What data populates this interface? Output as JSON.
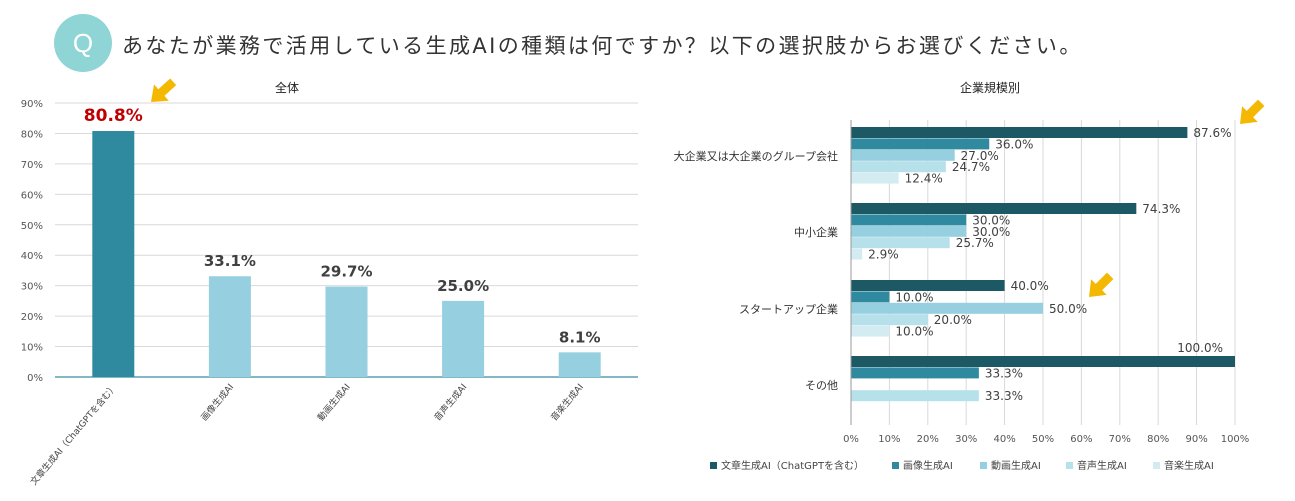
{
  "question": {
    "badge": "Q",
    "text": "あなたが業務で活用している生成AIの種類は何ですか？以下の選択肢からお選びください。"
  },
  "colors": {
    "dark": "#1c5965",
    "mid": "#2f8aa0",
    "light1": "#96cfe0",
    "light2": "#b6e0ea",
    "light3": "#d2ecf2",
    "highlight": "#c00000",
    "arrow": "#f5b800"
  },
  "chart_data": [
    {
      "type": "bar",
      "title": "全体",
      "categories": [
        "文章生成AI（ChatGPTを含む）",
        "画像生成AI",
        "動画生成AI",
        "音声生成AI",
        "音楽生成AI"
      ],
      "values": [
        80.8,
        33.1,
        29.7,
        25.0,
        8.1
      ],
      "value_labels": [
        "80.8%",
        "33.1%",
        "29.7%",
        "25.0%",
        "8.1%"
      ],
      "ylim": [
        0,
        90
      ],
      "yticks": [
        "0%",
        "10%",
        "20%",
        "30%",
        "40%",
        "50%",
        "60%",
        "70%",
        "80%",
        "90%"
      ],
      "highlight_index": 0
    },
    {
      "type": "bar",
      "orientation": "horizontal",
      "title": "企業規模別",
      "categories": [
        "大企業又は大企業のグループ会社",
        "中小企業",
        "スタートアップ企業",
        "その他"
      ],
      "series": [
        {
          "name": "文章生成AI（ChatGPTを含む）",
          "values": [
            87.6,
            74.3,
            40.0,
            100.0
          ],
          "labels": [
            "87.6%",
            "74.3%",
            "40.0%",
            "100.0%"
          ]
        },
        {
          "name": "画像生成AI",
          "values": [
            36.0,
            30.0,
            10.0,
            33.3
          ],
          "labels": [
            "36.0%",
            "30.0%",
            "10.0%",
            "33.3%"
          ]
        },
        {
          "name": "動画生成AI",
          "values": [
            27.0,
            30.0,
            50.0,
            0
          ],
          "labels": [
            "27.0%",
            "30.0%",
            "50.0%",
            ""
          ]
        },
        {
          "name": "音声生成AI",
          "values": [
            24.7,
            25.7,
            20.0,
            33.3
          ],
          "labels": [
            "24.7%",
            "25.7%",
            "20.0%",
            "33.3%"
          ]
        },
        {
          "name": "音楽生成AI",
          "values": [
            12.4,
            2.9,
            10.0,
            0
          ],
          "labels": [
            "12.4%",
            "2.9%",
            "10.0%",
            ""
          ]
        }
      ],
      "xlim": [
        0,
        100
      ],
      "xticks": [
        "0%",
        "10%",
        "20%",
        "30%",
        "40%",
        "50%",
        "60%",
        "70%",
        "80%",
        "90%",
        "100%"
      ],
      "legend": "bottom"
    }
  ]
}
